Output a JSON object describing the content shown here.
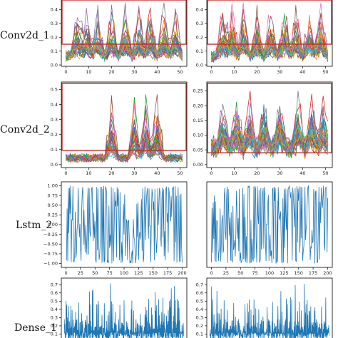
{
  "chart_data": {
    "type": "line",
    "panels": [
      {
        "row_label": "Conv2d_1",
        "xlim": [
          -2,
          53
        ],
        "ylim": [
          -0.01,
          0.48
        ],
        "x_ticks": [
          0,
          10,
          20,
          30,
          40,
          50
        ],
        "y_ticks": [
          0.0,
          0.1,
          0.2,
          0.3,
          0.4
        ],
        "y_tick_labels": [
          "0.0",
          "0.1",
          "0.2",
          "0.3",
          "0.4"
        ],
        "render": "multi",
        "x": [
          0,
          1,
          2,
          3,
          4,
          5,
          6,
          7,
          8,
          9,
          10,
          11,
          12,
          13,
          14,
          15,
          16,
          17,
          18,
          19,
          20,
          21,
          22,
          23,
          24,
          25,
          26,
          27,
          28,
          29,
          30,
          31,
          32,
          33,
          34,
          35,
          36,
          37,
          38,
          39,
          40,
          41,
          42,
          43,
          44,
          45,
          46,
          47,
          48,
          49,
          50,
          51
        ],
        "highlight": {
          "x": [
            -2,
            53
          ],
          "y": [
            0.15,
            0.48
          ]
        },
        "seeds": [
          11,
          12
        ],
        "series_count": 40,
        "peak_x": [
          5,
          9,
          14,
          20,
          26,
          32,
          37,
          43,
          48
        ],
        "peak_max": 0.45,
        "base": 0.06,
        "noise": 0.06
      },
      {
        "row_label": "Conv2d_2",
        "xlim": [
          -2,
          53
        ],
        "ylim": [
          -0.02,
          0.55
        ],
        "x_ticks": [
          0,
          10,
          20,
          30,
          40,
          50
        ],
        "y_ticks": [
          0.0,
          0.1,
          0.2,
          0.3,
          0.4,
          0.5
        ],
        "y_tick_labels": [
          "0.0",
          "0.1",
          "0.2",
          "0.3",
          "0.4",
          "0.5"
        ],
        "render": "multi",
        "x": [
          0,
          1,
          2,
          3,
          4,
          5,
          6,
          7,
          8,
          9,
          10,
          11,
          12,
          13,
          14,
          15,
          16,
          17,
          18,
          19,
          20,
          21,
          22,
          23,
          24,
          25,
          26,
          27,
          28,
          29,
          30,
          31,
          32,
          33,
          34,
          35,
          36,
          37,
          38,
          39,
          40,
          41,
          42,
          43,
          44,
          45,
          46,
          47,
          48,
          49,
          50,
          51
        ],
        "highlight": {
          "x": [
            -2,
            53
          ],
          "y": [
            0.095,
            0.55
          ]
        },
        "seeds": [
          21,
          22
        ],
        "series_count": 35,
        "peak_x": [
          20,
          30,
          35,
          40
        ],
        "peak_max": 0.54,
        "base": 0.04,
        "noise": 0.04
      },
      {
        "row_label": "Conv2d_2",
        "xlim": [
          -2,
          53
        ],
        "ylim": [
          -0.01,
          0.28
        ],
        "x_ticks": [
          0,
          10,
          20,
          30,
          40,
          50
        ],
        "y_ticks": [
          0.0,
          0.05,
          0.1,
          0.15,
          0.2,
          0.25
        ],
        "y_tick_labels": [
          "0.00",
          "0.05",
          "0.10",
          "0.15",
          "0.20",
          "0.25"
        ],
        "render": "multi",
        "x": [
          0,
          1,
          2,
          3,
          4,
          5,
          6,
          7,
          8,
          9,
          10,
          11,
          12,
          13,
          14,
          15,
          16,
          17,
          18,
          19,
          20,
          21,
          22,
          23,
          24,
          25,
          26,
          27,
          28,
          29,
          30,
          31,
          32,
          33,
          34,
          35,
          36,
          37,
          38,
          39,
          40,
          41,
          42,
          43,
          44,
          45,
          46,
          47,
          48,
          49,
          50,
          51
        ],
        "highlight": {
          "x": [
            -2,
            53
          ],
          "y": [
            0.04,
            0.28
          ]
        },
        "seeds": [
          23,
          24
        ],
        "series_count": 40,
        "peak_x": [
          5,
          11,
          17,
          23,
          30,
          38,
          44,
          49
        ],
        "peak_max": 0.25,
        "base": 0.05,
        "noise": 0.06
      },
      {
        "row_label": "Lstm_2",
        "xlim": [
          -8,
          208
        ],
        "ylim": [
          -1.1,
          1.1
        ],
        "x_ticks": [
          0,
          25,
          50,
          75,
          100,
          125,
          150,
          175,
          200
        ],
        "y_ticks": [
          -1.0,
          -0.75,
          -0.5,
          -0.25,
          0.0,
          0.25,
          0.5,
          0.75,
          1.0
        ],
        "y_tick_labels": [
          "−1.00",
          "−0.75",
          "−0.50",
          "−0.25",
          "0.00",
          "0.25",
          "0.50",
          "0.75",
          "1.00"
        ],
        "render": "single",
        "seeds": [
          31
        ],
        "n": 201
      },
      {
        "row_label": "Lstm_2",
        "xlim": [
          -8,
          208
        ],
        "ylim": [
          -1.1,
          1.1
        ],
        "x_ticks": [
          0,
          25,
          50,
          75,
          100,
          125,
          150,
          175,
          200
        ],
        "y_ticks": [],
        "y_tick_labels": [],
        "render": "single",
        "seeds": [
          32
        ],
        "n": 201
      },
      {
        "row_label": "Dense_1",
        "xlim": [
          -5,
          205
        ],
        "ylim": [
          0,
          0.78
        ],
        "x_ticks": [],
        "y_ticks": [
          0.1,
          0.2,
          0.3,
          0.4,
          0.5,
          0.6,
          0.7
        ],
        "y_tick_labels": [
          "0.1",
          "0.2",
          "0.3",
          "0.4",
          "0.5",
          "0.6",
          "0.7"
        ],
        "render": "spikes",
        "seeds": [
          41
        ],
        "n": 200
      },
      {
        "row_label": "Dense_1",
        "xlim": [
          -5,
          205
        ],
        "ylim": [
          0,
          0.78
        ],
        "x_ticks": [],
        "y_ticks": [
          0.1,
          0.2,
          0.3,
          0.4,
          0.5,
          0.6,
          0.7
        ],
        "y_tick_labels": [
          "0.1",
          "0.2",
          "0.3",
          "0.4",
          "0.5",
          "0.6",
          "0.7"
        ],
        "render": "spikes",
        "seeds": [
          42
        ],
        "n": 200
      }
    ],
    "row_labels": [
      "Conv2d_1",
      "Conv2d_2",
      "Lstm_2",
      "Dense_1"
    ],
    "colors": {
      "palette": [
        "#1f77b4",
        "#ff7f0e",
        "#2ca02c",
        "#d62728",
        "#9467bd",
        "#8c564b",
        "#e377c2",
        "#7f7f7f",
        "#bcbd22",
        "#17becf"
      ],
      "single": "#1f77b4",
      "highlight": "#c62828"
    },
    "grid": false
  }
}
